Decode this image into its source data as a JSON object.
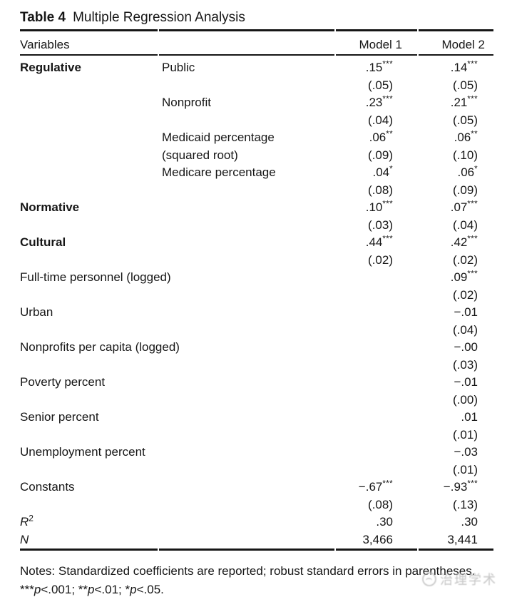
{
  "caption": {
    "label": "Table 4",
    "title": "Multiple Regression Analysis"
  },
  "header": {
    "col1": "Variables",
    "model1": "Model 1",
    "model2": "Model 2"
  },
  "rows": [
    {
      "group": "Regulative",
      "var": "Public",
      "m1": {
        "coef": ".15",
        "stars": "***",
        "se": "(.05)"
      },
      "m2": {
        "coef": ".14",
        "stars": "***",
        "se": "(.05)"
      }
    },
    {
      "var": "Nonprofit",
      "m1": {
        "coef": ".23",
        "stars": "***",
        "se": "(.04)"
      },
      "m2": {
        "coef": ".21",
        "stars": "***",
        "se": "(.05)"
      }
    },
    {
      "var": "Medicaid percentage",
      "var_line2": "(squared root)",
      "m1": {
        "coef": ".06",
        "stars": "**",
        "se": "(.09)"
      },
      "m2": {
        "coef": ".06",
        "stars": "**",
        "se": "(.10)"
      }
    },
    {
      "var": "Medicare percentage",
      "m1": {
        "coef": ".04",
        "stars": "*",
        "se": "(.08)"
      },
      "m2": {
        "coef": ".06",
        "stars": "*",
        "se": "(.09)"
      }
    },
    {
      "group": "Normative",
      "m1": {
        "coef": ".10",
        "stars": "***",
        "se": "(.03)"
      },
      "m2": {
        "coef": ".07",
        "stars": "***",
        "se": "(.04)"
      }
    },
    {
      "group": "Cultural",
      "m1": {
        "coef": ".44",
        "stars": "***",
        "se": "(.02)"
      },
      "m2": {
        "coef": ".42",
        "stars": "***",
        "se": "(.02)"
      }
    },
    {
      "label": "Full-time personnel (logged)",
      "m2": {
        "coef": ".09",
        "stars": "***",
        "se": "(.02)"
      }
    },
    {
      "label": "Urban",
      "m2": {
        "coef": "−.01",
        "se": "(.04)"
      }
    },
    {
      "label": "Nonprofits per capita (logged)",
      "m2": {
        "coef": "−.00",
        "se": "(.03)"
      }
    },
    {
      "label": "Poverty percent",
      "m2": {
        "coef": "−.01",
        "se": "(.00)"
      }
    },
    {
      "label": "Senior percent",
      "m2": {
        "coef": ".01",
        "se": "(.01)"
      }
    },
    {
      "label": "Unemployment percent",
      "m2": {
        "coef": "−.03",
        "se": "(.01)"
      }
    },
    {
      "label": "Constants",
      "m1": {
        "coef": "−.67",
        "stars": "***",
        "se": "(.08)"
      },
      "m2": {
        "coef": "−.93",
        "stars": "***",
        "se": "(.13)"
      }
    }
  ],
  "stats": {
    "r2": {
      "label": "R",
      "sup": "2",
      "m1": ".30",
      "m2": ".30"
    },
    "n": {
      "label": "N",
      "m1": "3,466",
      "m2": "3,441"
    }
  },
  "notes": {
    "line1": "Notes: Standardized coefficients are reported; robust standard errors in parentheses.",
    "sig1_stars": "***",
    "sig1_p": "p",
    "sig1_rest": "<.001; ",
    "sig2_stars": "**",
    "sig2_p": "p",
    "sig2_rest": "<.01; ",
    "sig3_stars": "*",
    "sig3_p": "p",
    "sig3_rest": "<.05."
  },
  "watermark": {
    "text": "治理学术"
  }
}
